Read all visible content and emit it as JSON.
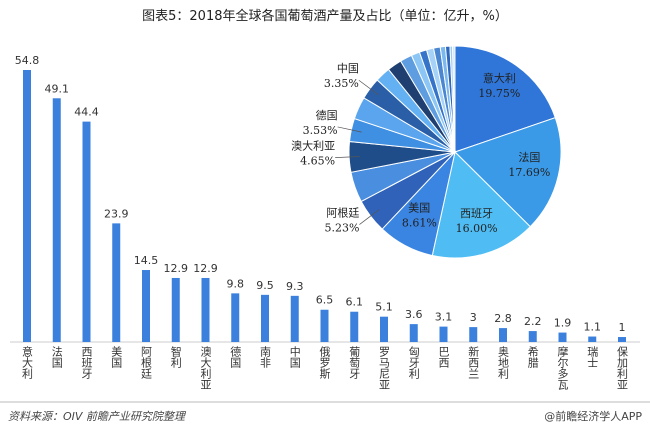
{
  "title": "图表5：2018年全球各国葡萄酒产量及占比（单位：亿升，%）",
  "chart_data": [
    {
      "type": "bar",
      "categories": [
        "意大利",
        "法国",
        "西班牙",
        "美国",
        "阿根廷",
        "智利",
        "澳大利亚",
        "德国",
        "南非",
        "中国",
        "俄罗斯",
        "葡萄牙",
        "罗马尼亚",
        "匈牙利",
        "巴西",
        "新西兰",
        "奥地利",
        "希腊",
        "摩尔多瓦",
        "瑞士",
        "保加利亚"
      ],
      "values": [
        54.8,
        49.1,
        44.4,
        23.9,
        14.5,
        12.9,
        12.9,
        9.8,
        9.5,
        9.3,
        6.5,
        6.1,
        5.1,
        3.6,
        3.1,
        3,
        2.8,
        2.2,
        1.9,
        1.1,
        1
      ],
      "color": "#3a80dc"
    },
    {
      "type": "pie",
      "categories": [
        "意大利",
        "法国",
        "西班牙",
        "美国",
        "阿根廷",
        null,
        "澳大利亚",
        "德国",
        null,
        "中国",
        null,
        null,
        null,
        null,
        null,
        null,
        null,
        null,
        null,
        null,
        null
      ],
      "values": [
        19.75,
        17.69,
        16.0,
        8.61,
        5.23,
        4.65,
        4.65,
        3.53,
        3.42,
        3.35,
        2.34,
        2.2,
        1.84,
        1.3,
        1.12,
        1.08,
        1.01,
        0.79,
        0.68,
        0.4,
        0.36
      ],
      "value_labels": [
        "19.75%",
        "17.69%",
        "16.00%",
        "8.61%",
        "5.23%",
        null,
        "4.65%",
        "3.53%",
        null,
        "3.35%",
        null,
        null,
        null,
        null,
        null,
        null,
        null,
        null,
        null,
        null,
        null
      ],
      "colors": [
        "#2f76d8",
        "#3b9ae8",
        "#4fbdf4",
        "#3a84e2",
        "#2f62b8",
        "#4a8ee0",
        "#1f4d8a",
        "#3f8fe2",
        "#5aa5ee",
        "#2a5fa8",
        "#63b1f2",
        "#1e3f70",
        "#5d9de0",
        "#8cc6f5",
        "#3574c8",
        "#a5d2f6",
        "#4b86d0",
        "#7ab8ef",
        "#2d68bd",
        "#9fcaf0",
        "#c8e4fb"
      ]
    }
  ],
  "source": "资料来源：OIV  前瞻产业研究院整理",
  "credit": "@前瞻经济学人APP"
}
